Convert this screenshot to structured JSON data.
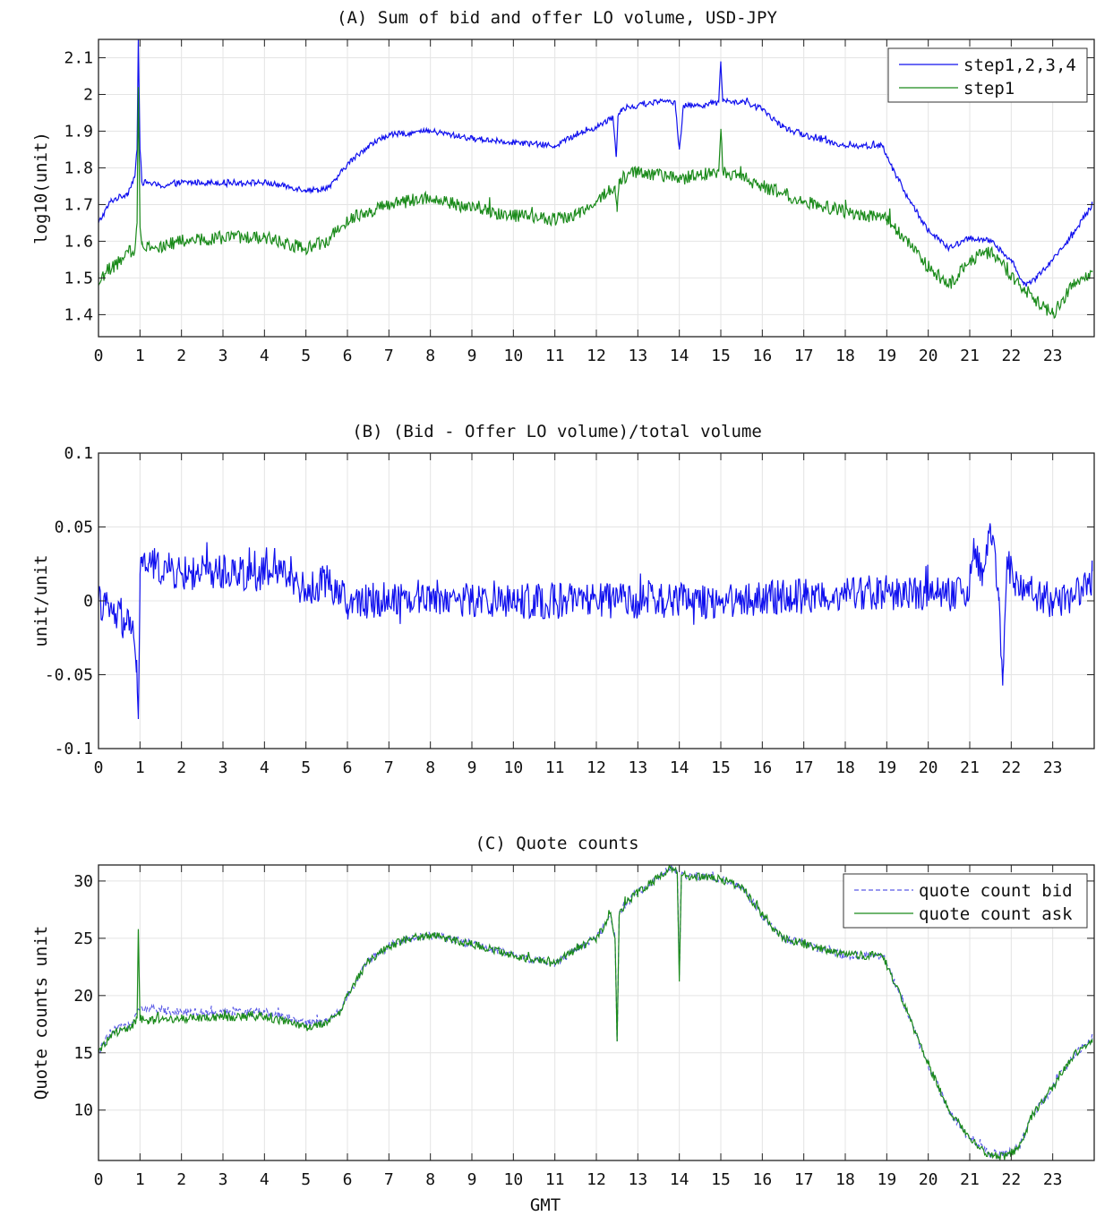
{
  "chart_data": [
    {
      "id": "A",
      "type": "line",
      "title": "(A) Sum of bid and offer LO volume, USD-JPY",
      "xlabel": "",
      "ylabel": "log10(unit)",
      "xlim": [
        0,
        24
      ],
      "ylim": [
        1.34,
        2.15
      ],
      "xticks": [
        0,
        1,
        2,
        3,
        4,
        5,
        6,
        7,
        8,
        9,
        10,
        11,
        12,
        13,
        14,
        15,
        16,
        17,
        18,
        19,
        20,
        21,
        22,
        23
      ],
      "yticks": [
        1.4,
        1.5,
        1.6,
        1.7,
        1.8,
        1.9,
        2.0,
        2.1
      ],
      "ytick_labels": [
        "1.4",
        "1.5",
        "1.6",
        "1.7",
        "1.8",
        "1.9",
        "2",
        "2.1"
      ],
      "grid": true,
      "legend": "top-right",
      "noise": [
        0.008,
        0.018
      ],
      "series": [
        {
          "name": "step1,2,3,4",
          "color": "#1010ee",
          "dash": "",
          "x": [
            0,
            0.3,
            0.7,
            0.88,
            0.93,
            0.96,
            1.0,
            1.05,
            1.2,
            1.5,
            2,
            3,
            4,
            5,
            5.3,
            5.6,
            6,
            6.5,
            7,
            8,
            9,
            10,
            11,
            11.5,
            12,
            12.4,
            12.48,
            12.52,
            12.6,
            13,
            13.5,
            13.9,
            14,
            14.1,
            14.5,
            14.95,
            15,
            15.05,
            15.5,
            16,
            16.5,
            17,
            18,
            18.9,
            19,
            19.5,
            20,
            20.5,
            21,
            21.5,
            22,
            22.3,
            22.6,
            23,
            23.5,
            23.95
          ],
          "y": [
            1.65,
            1.71,
            1.73,
            1.78,
            1.85,
            2.15,
            1.85,
            1.76,
            1.76,
            1.75,
            1.76,
            1.76,
            1.76,
            1.74,
            1.74,
            1.75,
            1.81,
            1.86,
            1.89,
            1.9,
            1.88,
            1.87,
            1.86,
            1.89,
            1.91,
            1.94,
            1.83,
            1.94,
            1.96,
            1.97,
            1.98,
            1.98,
            1.85,
            1.97,
            1.97,
            1.98,
            2.09,
            1.98,
            1.98,
            1.96,
            1.91,
            1.89,
            1.86,
            1.86,
            1.83,
            1.72,
            1.63,
            1.58,
            1.61,
            1.6,
            1.55,
            1.48,
            1.5,
            1.55,
            1.62,
            1.7
          ]
        },
        {
          "name": "step1",
          "color": "#1a8a1a",
          "dash": "",
          "x": [
            0,
            0.2,
            0.6,
            0.88,
            0.93,
            0.96,
            1.0,
            1.05,
            1.3,
            2,
            3,
            4,
            5,
            5.5,
            6,
            7,
            8,
            9,
            10,
            11,
            11.5,
            12,
            12.45,
            12.5,
            12.55,
            13,
            13.5,
            14,
            14.5,
            14.95,
            15,
            15.05,
            15.5,
            16,
            17,
            18,
            19,
            19.5,
            20,
            20.5,
            21,
            21.5,
            22,
            22.5,
            23,
            23.5,
            23.95
          ],
          "y": [
            1.48,
            1.52,
            1.55,
            1.58,
            1.65,
            2.02,
            1.65,
            1.6,
            1.58,
            1.6,
            1.61,
            1.61,
            1.58,
            1.6,
            1.66,
            1.7,
            1.72,
            1.69,
            1.67,
            1.66,
            1.67,
            1.71,
            1.75,
            1.68,
            1.77,
            1.79,
            1.78,
            1.77,
            1.78,
            1.79,
            1.9,
            1.79,
            1.77,
            1.75,
            1.71,
            1.68,
            1.66,
            1.6,
            1.53,
            1.48,
            1.55,
            1.57,
            1.5,
            1.45,
            1.4,
            1.48,
            1.52
          ]
        }
      ]
    },
    {
      "id": "B",
      "type": "line",
      "title": "(B) (Bid - Offer LO volume)/total volume",
      "xlabel": "",
      "ylabel": "unit/unit",
      "xlim": [
        0,
        24
      ],
      "ylim": [
        -0.1,
        0.1
      ],
      "xticks": [
        0,
        1,
        2,
        3,
        4,
        5,
        6,
        7,
        8,
        9,
        10,
        11,
        12,
        13,
        14,
        15,
        16,
        17,
        18,
        19,
        20,
        21,
        22,
        23
      ],
      "yticks": [
        -0.1,
        -0.05,
        0,
        0.05,
        0.1
      ],
      "ytick_labels": [
        "-0.1",
        "-0.05",
        "0",
        "0.05",
        "0.1"
      ],
      "grid": true,
      "legend": "none",
      "noise": [
        0.012
      ],
      "series": [
        {
          "name": "",
          "color": "#1010ee",
          "dash": "",
          "x": [
            0,
            0.4,
            0.8,
            0.92,
            0.96,
            1.0,
            1.05,
            1.2,
            2,
            3,
            4,
            4.6,
            5,
            5.5,
            6,
            7,
            8,
            9,
            10,
            11,
            12,
            13,
            14,
            15,
            16,
            17,
            18,
            19,
            20,
            20.8,
            20.95,
            21.1,
            21.3,
            21.5,
            21.7,
            21.8,
            21.9,
            22.1,
            22.5,
            23,
            23.5,
            23.95
          ],
          "y": [
            0.0,
            -0.01,
            -0.02,
            -0.04,
            -0.08,
            0.01,
            0.03,
            0.025,
            0.018,
            0.02,
            0.018,
            0.02,
            0.005,
            0.015,
            -0.002,
            0.002,
            0.003,
            0.0,
            0.0,
            0.0,
            0.0,
            0.0,
            0.0,
            0.0,
            0.002,
            0.003,
            0.005,
            0.006,
            0.004,
            0.005,
            0.0,
            0.04,
            0.01,
            0.05,
            0.0,
            -0.05,
            0.03,
            0.01,
            0.005,
            0.0,
            0.002,
            0.02
          ]
        }
      ]
    },
    {
      "id": "C",
      "type": "line",
      "title": "(C) Quote counts",
      "xlabel": "GMT",
      "ylabel": "Quote counts unit",
      "xlim": [
        0,
        24
      ],
      "ylim": [
        5.6,
        31.4
      ],
      "xticks": [
        0,
        1,
        2,
        3,
        4,
        5,
        6,
        7,
        8,
        9,
        10,
        11,
        12,
        13,
        14,
        15,
        16,
        17,
        18,
        19,
        20,
        21,
        22,
        23
      ],
      "yticks": [
        10,
        15,
        20,
        25,
        30
      ],
      "ytick_labels": [
        "10",
        "15",
        "20",
        "25",
        "30"
      ],
      "grid": true,
      "legend": "top-right",
      "noise": [
        0.35,
        0.35
      ],
      "series": [
        {
          "name": "quote count bid",
          "color": "#5a5ae6",
          "dash": "5,3",
          "x": [
            0,
            0.3,
            0.8,
            0.93,
            1.0,
            1.2,
            2,
            3,
            4,
            5,
            5.5,
            5.8,
            6,
            6.5,
            7,
            7.5,
            8,
            9,
            10,
            11,
            11.5,
            12,
            12.35,
            12.45,
            12.5,
            12.55,
            12.7,
            13,
            13.5,
            13.8,
            13.95,
            14.0,
            14.05,
            14.3,
            15,
            15.5,
            16,
            16.5,
            17,
            18,
            18.9,
            19.5,
            20,
            20.5,
            21,
            21.5,
            21.9,
            22.2,
            22.5,
            23,
            23.5,
            23.95
          ],
          "y": [
            15,
            16.8,
            17.6,
            18.5,
            18.8,
            18.8,
            18.6,
            18.5,
            18.6,
            17.6,
            17.8,
            18.6,
            20,
            23,
            24.3,
            25,
            25.3,
            24.5,
            23.5,
            22.8,
            24,
            25,
            27,
            25,
            16,
            27,
            28,
            29,
            30.3,
            31.2,
            30.8,
            21.8,
            30.5,
            30.4,
            30.2,
            29.5,
            27,
            25,
            24.5,
            23.5,
            23.5,
            18.5,
            14,
            10,
            7.5,
            6.2,
            6.2,
            6.8,
            9.5,
            12,
            14.8,
            16.2
          ]
        },
        {
          "name": "quote count ask",
          "color": "#1a8a1a",
          "dash": "",
          "x": [
            0,
            0.3,
            0.8,
            0.93,
            0.96,
            1.0,
            1.2,
            2,
            3,
            4,
            5,
            5.5,
            5.8,
            6,
            6.5,
            7,
            7.5,
            8,
            9,
            10,
            11,
            11.5,
            12,
            12.35,
            12.45,
            12.5,
            12.55,
            12.7,
            13,
            13.5,
            13.8,
            13.95,
            14.0,
            14.05,
            14.3,
            15,
            15.5,
            16,
            16.5,
            17,
            18,
            18.9,
            19.5,
            20,
            20.5,
            21,
            21.5,
            21.9,
            22.2,
            22.5,
            23,
            23.5,
            23.95
          ],
          "y": [
            15,
            16.6,
            17.3,
            18.0,
            25.8,
            18.0,
            17.8,
            18.0,
            18.1,
            18.2,
            17.2,
            17.6,
            18.4,
            20,
            23,
            24.3,
            25,
            25.3,
            24.5,
            23.5,
            22.8,
            24,
            25,
            27,
            25,
            16,
            27,
            28,
            29,
            30.3,
            31.2,
            30.8,
            21.5,
            30.5,
            30.4,
            30.2,
            29.5,
            27,
            25,
            24.5,
            23.5,
            23.5,
            18.5,
            14,
            10,
            7.5,
            6.0,
            6.0,
            6.8,
            9.5,
            12,
            14.8,
            16.2
          ]
        }
      ]
    }
  ]
}
